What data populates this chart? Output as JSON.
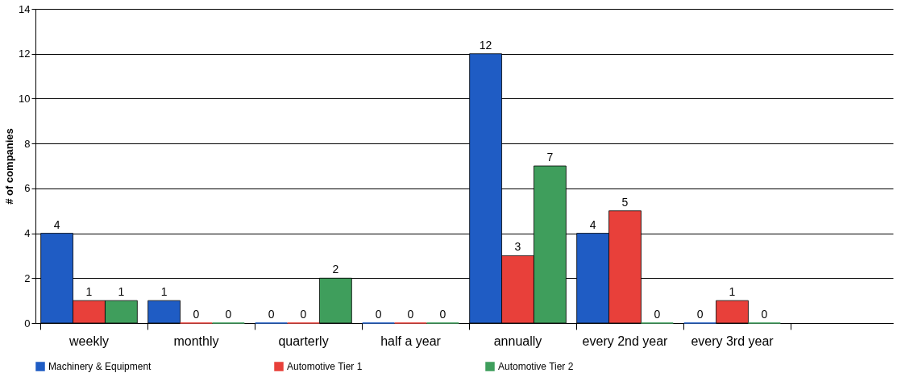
{
  "chart_data": {
    "type": "bar",
    "ylabel": "# of companies",
    "categories": [
      "weekly",
      "monthly",
      "quarterly",
      "half a year",
      "annually",
      "every 2nd year",
      "every 3rd year",
      null
    ],
    "series": [
      {
        "name": "Machinery & Equipment",
        "color": "#1f5cc4",
        "values": [
          4,
          1,
          0,
          0,
          12,
          4,
          0,
          null
        ]
      },
      {
        "name": "Automotive Tier 1",
        "color": "#e8403a",
        "values": [
          1,
          0,
          0,
          0,
          3,
          5,
          1,
          null
        ]
      },
      {
        "name": "Automotive Tier 2",
        "color": "#3f9e5c",
        "values": [
          1,
          0,
          2,
          0,
          7,
          0,
          0,
          null
        ]
      }
    ],
    "ylim": [
      0,
      14
    ],
    "yticks": [
      0,
      2,
      4,
      6,
      8,
      10,
      12,
      14
    ],
    "grid": "y",
    "legend": "bottom",
    "data_labels": true
  }
}
